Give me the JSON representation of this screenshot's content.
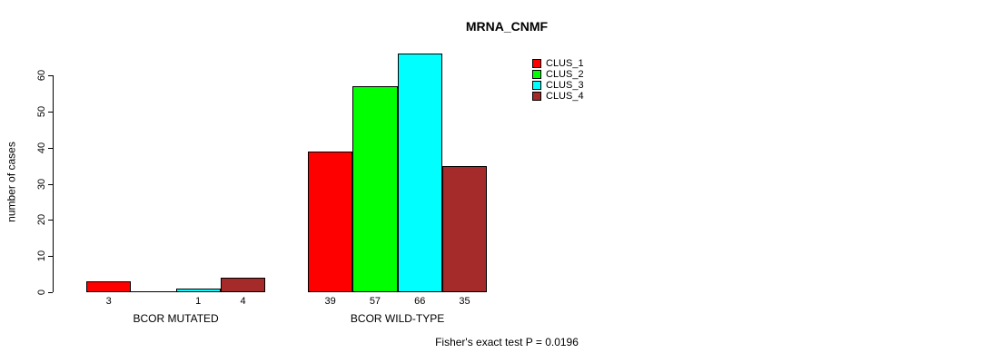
{
  "chart_data": {
    "type": "bar",
    "title": "MRNA_CNMF",
    "ylabel": "number of cases",
    "xlabel": "",
    "ylim": [
      0,
      60
    ],
    "yticks": [
      0,
      10,
      20,
      30,
      40,
      50,
      60
    ],
    "grid": false,
    "categories": [
      "BCOR MUTATED",
      "BCOR WILD-TYPE"
    ],
    "series": [
      {
        "name": "CLUS_1",
        "color": "#FF0000",
        "values": [
          3,
          39
        ]
      },
      {
        "name": "CLUS_2",
        "color": "#00FF00",
        "values": [
          0,
          57
        ]
      },
      {
        "name": "CLUS_3",
        "color": "#00FFFF",
        "values": [
          1,
          66
        ]
      },
      {
        "name": "CLUS_4",
        "color": "#A52A2A",
        "values": [
          4,
          35
        ]
      }
    ],
    "bar_value_labels_shown": true,
    "zero_value_labels_hidden": true,
    "legend_position": "top-right",
    "footer": "Fisher's exact test P = 0.0196",
    "axis_color": "#000000",
    "bar_border_color": "#000000"
  }
}
